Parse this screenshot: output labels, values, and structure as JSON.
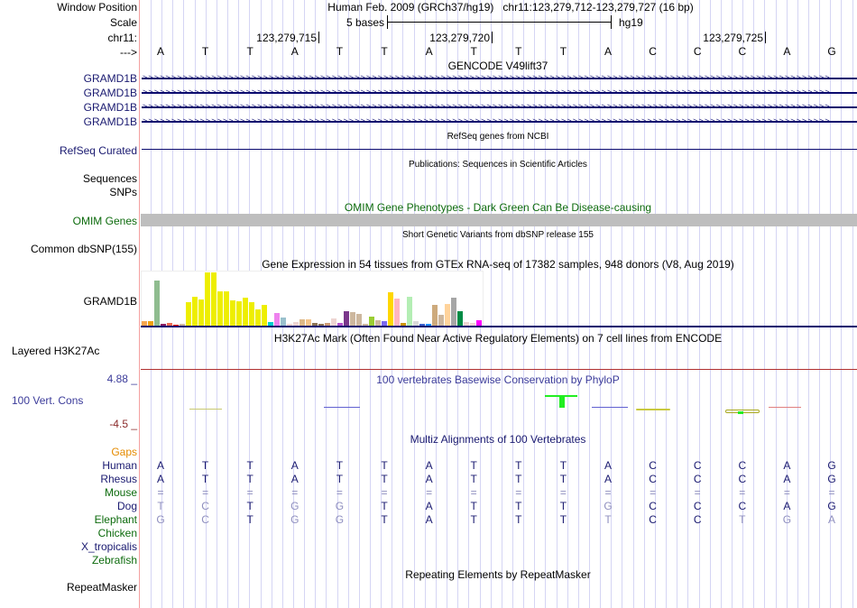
{
  "header": {
    "window_position_label": "Window Position",
    "window_position_value": "Human Feb. 2009 (GRCh37/hg19)   chr11:123,279,712-123,279,727 (16 bp)",
    "scale_label": "Scale",
    "scale_value": "5 bases",
    "scale_assembly": "hg19",
    "chrom_label": "chr11:",
    "direction_label": "--->",
    "ticks": [
      "123,279,715",
      "123,279,720",
      "123,279,725"
    ],
    "bases": [
      "A",
      "T",
      "T",
      "A",
      "T",
      "T",
      "A",
      "T",
      "T",
      "T",
      "A",
      "C",
      "C",
      "C",
      "A",
      "G"
    ]
  },
  "tracks": {
    "gencode": {
      "title": "GENCODE V49lift37",
      "rows": [
        "GRAMD1B",
        "GRAMD1B",
        "GRAMD1B",
        "GRAMD1B"
      ]
    },
    "refseq": {
      "label": "RefSeq Curated",
      "title": "RefSeq genes from NCBI"
    },
    "publications": {
      "title": "Publications: Sequences in Scientific Articles",
      "labels": [
        "Sequences",
        "SNPs"
      ]
    },
    "omim": {
      "label": "OMIM Genes",
      "title": "OMIM Gene Phenotypes - Dark Green Can Be Disease-causing",
      "bar_color": "#bebebe"
    },
    "dbsnp": {
      "label": "Common dbSNP(155)",
      "title": "Short Genetic Variants from dbSNP release 155"
    },
    "gtex": {
      "title": "Gene Expression in 54 tissues from GTEx RNA-seq of 17382 samples, 948 donors (V8, Aug 2019)",
      "label": "GRAMD1B"
    },
    "h3k27ac": {
      "label": "Layered H3K27Ac",
      "title": "H3K27Ac Mark (Often Found Near Active Regulatory Elements) on 7 cell lines from ENCODE"
    },
    "phylop": {
      "label": "100 Vert. Cons",
      "title": "100 vertebrates Basewise Conservation by PhyloP",
      "max": "4.88 _",
      "min": "-4.5 _"
    },
    "multiz": {
      "title": "Multiz Alignments of 100 Vertebrates",
      "gaps_label": "Gaps",
      "species": [
        {
          "name": "Human",
          "color": "navy",
          "bases": [
            "A",
            "T",
            "T",
            "A",
            "T",
            "T",
            "A",
            "T",
            "T",
            "T",
            "A",
            "C",
            "C",
            "C",
            "A",
            "G"
          ],
          "dim": []
        },
        {
          "name": "Rhesus",
          "color": "navy",
          "bases": [
            "A",
            "T",
            "T",
            "A",
            "T",
            "T",
            "A",
            "T",
            "T",
            "T",
            "A",
            "C",
            "C",
            "C",
            "A",
            "G"
          ],
          "dim": []
        },
        {
          "name": "Mouse",
          "color": "green",
          "bases": [
            "=",
            "=",
            "=",
            "=",
            "=",
            "=",
            "=",
            "=",
            "=",
            "=",
            "=",
            "=",
            "=",
            "=",
            "=",
            "="
          ],
          "dim": [
            0,
            1,
            2,
            3,
            4,
            5,
            6,
            7,
            8,
            9,
            10,
            11,
            12,
            13,
            14,
            15
          ]
        },
        {
          "name": "Dog",
          "color": "navy",
          "bases": [
            "T",
            "C",
            "T",
            "G",
            "G",
            "T",
            "A",
            "T",
            "T",
            "T",
            "G",
            "C",
            "C",
            "C",
            "A",
            "G"
          ],
          "dim": [
            0,
            1,
            3,
            4,
            10
          ]
        },
        {
          "name": "Elephant",
          "color": "green",
          "bases": [
            "G",
            "C",
            "T",
            "G",
            "G",
            "T",
            "A",
            "T",
            "T",
            "T",
            "T",
            "C",
            "C",
            "T",
            "G",
            "A"
          ],
          "dim": [
            0,
            1,
            3,
            4,
            10,
            13,
            14,
            15
          ]
        },
        {
          "name": "Chicken",
          "color": "green",
          "bases": [],
          "dim": []
        },
        {
          "name": "X_tropicalis",
          "color": "navy",
          "bases": [],
          "dim": []
        },
        {
          "name": "Zebrafish",
          "color": "green",
          "bases": [],
          "dim": []
        }
      ]
    },
    "repeatmasker": {
      "label": "RepeatMasker",
      "title": "Repeating Elements by RepeatMasker"
    }
  },
  "chart_data": {
    "type": "bar",
    "title": "Gene Expression in 54 tissues from GTEx RNA-seq of 17382 samples, 948 donors (V8, Aug 2019)",
    "xlabel": "",
    "ylabel": "",
    "ylim": [
      0,
      62
    ],
    "values": [
      6,
      6,
      52,
      3,
      4,
      2,
      3,
      27,
      34,
      30,
      61,
      61,
      40,
      40,
      29,
      28,
      33,
      27,
      19,
      24,
      5,
      15,
      10,
      3,
      5,
      8,
      8,
      4,
      3,
      4,
      9,
      4,
      17,
      16,
      14,
      3,
      11,
      7,
      6,
      39,
      31,
      4,
      34,
      6,
      3,
      3,
      24,
      13,
      25,
      33,
      17,
      5,
      4,
      7
    ],
    "colors": [
      "#f6a54d",
      "#f0a00f",
      "#8fbc8f",
      "#8b1c62",
      "#ee6a50",
      "#ff0000",
      "#cdb79e",
      "#eeee00",
      "#eeee00",
      "#eeee00",
      "#eeee00",
      "#eeee00",
      "#eeee00",
      "#eeee00",
      "#eeee00",
      "#eeee00",
      "#eeee00",
      "#eeee00",
      "#eeee00",
      "#eeee00",
      "#00cdcd",
      "#ee82ee",
      "#9ac0cd",
      "#eed5d2",
      "#eed5d2",
      "#deb887",
      "#f4c48a",
      "#8b7355",
      "#8b7355",
      "#cd9b76",
      "#eed5d2",
      "#b452cd",
      "#7a378b",
      "#cdb79e",
      "#cdb79e",
      "#cdb79e",
      "#9acd32",
      "#cdb79e",
      "#7b68ee",
      "#ffd700",
      "#ffb6c1",
      "#cd950c",
      "#b4eeb4",
      "#d9d9d9",
      "#3a5fcd",
      "#1e90ff",
      "#cdaa7d",
      "#cdb79e",
      "#ffd39b",
      "#a6a6a6",
      "#008b45",
      "#eed5d2",
      "#eed5d2",
      "#ff00ff"
    ]
  }
}
